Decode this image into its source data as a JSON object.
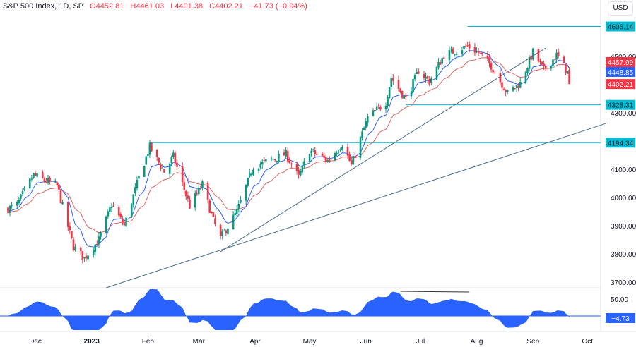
{
  "header": {
    "symbol": "S&P 500 Index, 1D, SP",
    "open": "O4452.81",
    "high": "H4461.03",
    "low": "L4401.38",
    "close": "C4402.21",
    "change": "−41.73 (−0.94%)",
    "currency": "USD"
  },
  "colors": {
    "up": "#089981",
    "down": "#f23645",
    "ma_fast": "#2962ff",
    "ma_slow": "#e06666",
    "osc": "#2962ff",
    "level": "#00bcd4",
    "trend": "#4a6a8f"
  },
  "chart_data": {
    "type": "candlestick",
    "price_axis": {
      "range": [
        3680,
        4640
      ],
      "ticks": [
        "3700.00",
        "3800.00",
        "3900.00",
        "4000.00",
        "4100.00",
        "4300.00",
        "4500.00"
      ]
    },
    "time_axis": {
      "labels": [
        [
          "2022-12-01",
          "Dec"
        ],
        [
          "2023-01-01",
          "2023"
        ],
        [
          "2023-02-01",
          "Feb"
        ],
        [
          "2023-03-01",
          "Mar"
        ],
        [
          "2023-04-01",
          "Apr"
        ],
        [
          "2023-05-01",
          "May"
        ],
        [
          "2023-06-01",
          "Jun"
        ],
        [
          "2023-07-01",
          "Jul"
        ],
        [
          "2023-08-01",
          "Aug"
        ],
        [
          "2023-09-01",
          "Sep"
        ],
        [
          "2023-10-01",
          "Oct"
        ]
      ]
    },
    "close_keypoints": [
      [
        "2022-11-16",
        3960
      ],
      [
        "2022-11-21",
        3975
      ],
      [
        "2022-11-30",
        4080
      ],
      [
        "2022-12-01",
        4076
      ],
      [
        "2022-12-13",
        4040
      ],
      [
        "2022-12-22",
        3825
      ],
      [
        "2022-12-28",
        3785
      ],
      [
        "2023-01-05",
        3850
      ],
      [
        "2023-01-12",
        3975
      ],
      [
        "2023-01-19",
        3900
      ],
      [
        "2023-01-27",
        4070
      ],
      [
        "2023-02-02",
        4179
      ],
      [
        "2023-02-10",
        4090
      ],
      [
        "2023-02-15",
        4145
      ],
      [
        "2023-02-24",
        3970
      ],
      [
        "2023-03-03",
        4045
      ],
      [
        "2023-03-09",
        3918
      ],
      [
        "2023-03-13",
        3855
      ],
      [
        "2023-03-22",
        3950
      ],
      [
        "2023-03-31",
        4109
      ],
      [
        "2023-04-18",
        4154
      ],
      [
        "2023-04-25",
        4071
      ],
      [
        "2023-05-01",
        4167
      ],
      [
        "2023-05-11",
        4130
      ],
      [
        "2023-05-19",
        4191
      ],
      [
        "2023-05-24",
        4115
      ],
      [
        "2023-06-02",
        4282
      ],
      [
        "2023-06-12",
        4338
      ],
      [
        "2023-06-15",
        4425
      ],
      [
        "2023-06-23",
        4348
      ],
      [
        "2023-06-30",
        4450
      ],
      [
        "2023-07-06",
        4411
      ],
      [
        "2023-07-14",
        4505
      ],
      [
        "2023-07-27",
        4537
      ],
      [
        "2023-08-02",
        4513
      ],
      [
        "2023-08-09",
        4467
      ],
      [
        "2023-08-18",
        4369
      ],
      [
        "2023-08-25",
        4405
      ],
      [
        "2023-09-01",
        4515
      ],
      [
        "2023-09-07",
        4451
      ],
      [
        "2023-09-14",
        4505
      ],
      [
        "2023-09-20",
        4444
      ]
    ],
    "last_candle": {
      "date": "2023-09-21",
      "open": 4452.81,
      "high": 4461.03,
      "low": 4401.38,
      "close": 4402.21
    },
    "moving_averages": [
      {
        "value": "4457.99",
        "color": "#f23645"
      },
      {
        "value": "4448.85",
        "color": "#2962ff"
      }
    ],
    "last_price_label": "4402.21",
    "horizontal_levels": [
      {
        "from": "2023-07-27",
        "value": 4606.14,
        "label": "4606.14"
      },
      {
        "from": "2023-06-23",
        "value": 4328.31,
        "label": "4328.31"
      },
      {
        "from": "2023-02-02",
        "value": 4194.34,
        "label": "4194.34"
      }
    ],
    "trendlines": [
      {
        "p1": [
          "2023-03-13",
          3808
        ],
        "p2": [
          "2023-09-08",
          4530
        ]
      },
      {
        "p1": [
          "2023-01-09",
          3680
        ],
        "p2": [
          "2023-10-11",
          4262
        ]
      }
    ],
    "oscillator": {
      "ticks": [
        "50.00"
      ],
      "last_value": "-4.73",
      "divergence_line": [
        [
          "2023-06-20",
          60
        ],
        [
          "2023-07-28",
          56
        ]
      ]
    }
  }
}
